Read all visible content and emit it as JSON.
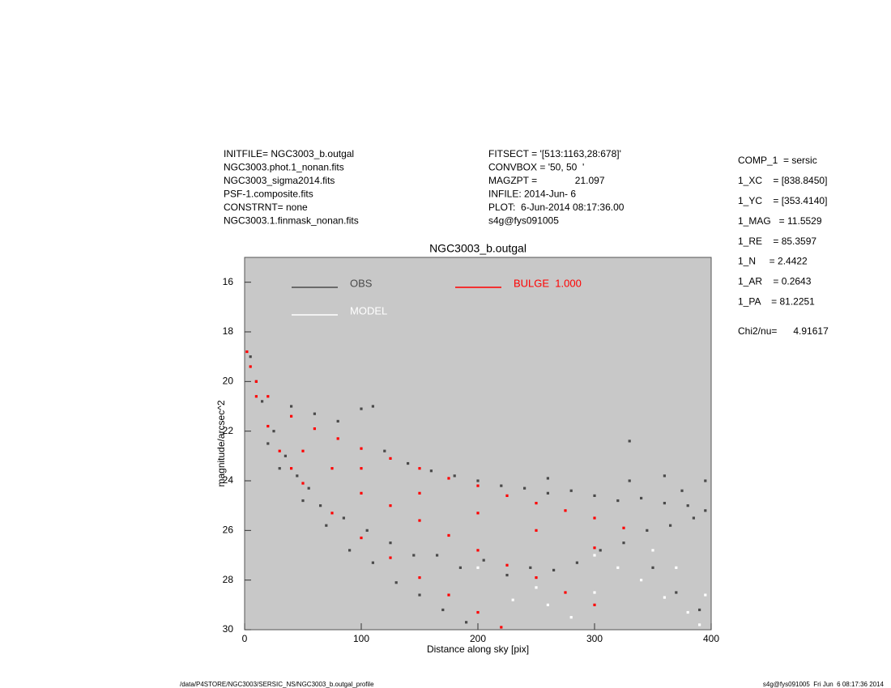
{
  "header": {
    "left": [
      "INITFILE= NGC3003_b.outgal",
      "NGC3003.phot.1_nonan.fits",
      "NGC3003_sigma2014.fits",
      "PSF-1.composite.fits",
      "CONSTRNT= none",
      "NGC3003.1.finmask_nonan.fits"
    ],
    "middle": [
      "FITSECT = '[513:1163,28:678]'",
      "CONVBOX = '50, 50  '",
      "MAGZPT =              21.097",
      "INFILE: 2014-Jun- 6",
      "PLOT:  6-Jun-2014 08:17:36.00",
      "s4g@fys091005"
    ],
    "right": [
      "COMP_1  = sersic",
      "1_XC    = [838.8450]",
      "1_YC    = [353.4140]",
      "1_MAG   = 11.5529",
      "1_RE    = 85.3597",
      "1_N     = 2.4422",
      "1_AR    = 0.2643",
      "1_PA    = 81.2251",
      "Chi2/nu=      4.91617"
    ]
  },
  "footer": {
    "left": "/data/P4STORE/NGC3003/SERSIC_NS/NGC3003_b.outgal_profile",
    "right": "s4g@fys091005  Fri Jun  6 08:17:36 2014"
  },
  "chart_data": {
    "type": "scatter",
    "title": "NGC3003_b.outgal",
    "x_label": "Distance along sky [pix]",
    "y_label": "magnitude/arcsec^2",
    "xlim": [
      0,
      400
    ],
    "ylim": [
      30,
      15
    ],
    "xticks": [
      0,
      100,
      200,
      300,
      400
    ],
    "yticks": [
      16,
      18,
      20,
      22,
      24,
      26,
      28,
      30
    ],
    "background": "#c8c8c8",
    "series": [
      {
        "name": "OBS",
        "color": "#4a4a4a",
        "x": [
          40,
          60,
          80,
          100,
          120,
          140,
          160,
          180,
          200,
          220,
          240,
          260,
          280,
          300,
          320,
          340,
          360,
          380,
          20,
          30,
          50,
          70,
          90,
          110,
          130,
          150,
          170,
          190,
          5,
          10,
          15,
          25,
          35,
          45,
          55,
          65,
          85,
          105,
          125,
          145,
          165,
          185,
          205,
          225,
          245,
          265,
          285,
          305,
          325,
          345,
          365,
          385,
          395,
          350,
          370,
          390,
          330,
          360,
          375,
          395,
          330,
          110,
          260
        ],
        "values": [
          21.0,
          21.3,
          21.6,
          21.1,
          22.8,
          23.3,
          23.6,
          23.8,
          24.0,
          24.2,
          24.3,
          24.5,
          24.4,
          24.6,
          24.8,
          24.7,
          24.9,
          25.0,
          22.5,
          23.5,
          24.8,
          25.8,
          26.8,
          27.3,
          28.1,
          28.6,
          29.2,
          29.7,
          19.0,
          20.0,
          20.8,
          22.0,
          23.0,
          23.8,
          24.3,
          25.0,
          25.5,
          26.0,
          26.5,
          27.0,
          27.0,
          27.5,
          27.2,
          27.8,
          27.5,
          27.6,
          27.3,
          26.8,
          26.5,
          26.0,
          25.8,
          25.5,
          25.2,
          27.5,
          28.5,
          29.2,
          24.0,
          23.8,
          24.4,
          24.0,
          22.4,
          21.0,
          23.9
        ]
      },
      {
        "name": "BULGE  1.000",
        "color": "#ff0000",
        "x": [
          2,
          5,
          10,
          20,
          40,
          60,
          80,
          100,
          125,
          150,
          175,
          200,
          225,
          250,
          275,
          300,
          325,
          10,
          20,
          30,
          40,
          50,
          75,
          100,
          125,
          150,
          175,
          200,
          220,
          50,
          75,
          100,
          125,
          150,
          175,
          200,
          225,
          250,
          275,
          300,
          100,
          150,
          200,
          250,
          300
        ],
        "values": [
          18.8,
          19.4,
          20.0,
          20.6,
          21.4,
          21.9,
          22.3,
          22.7,
          23.1,
          23.5,
          23.9,
          24.2,
          24.6,
          24.9,
          25.2,
          25.5,
          25.9,
          20.6,
          21.8,
          22.8,
          23.5,
          24.1,
          25.3,
          26.3,
          27.1,
          27.9,
          28.6,
          29.3,
          29.9,
          22.8,
          23.5,
          24.5,
          25.0,
          25.6,
          26.2,
          26.8,
          27.4,
          27.9,
          28.5,
          29.0,
          23.5,
          24.5,
          25.3,
          26.0,
          26.7
        ]
      },
      {
        "name": "MODEL",
        "color": "#ffffff",
        "x": [
          200,
          250,
          300,
          320,
          340,
          360,
          380,
          390,
          300,
          350,
          260,
          280,
          230,
          370,
          395
        ],
        "values": [
          27.5,
          28.3,
          28.5,
          27.5,
          28.0,
          28.7,
          29.3,
          29.8,
          27.0,
          26.8,
          29.0,
          29.5,
          28.8,
          27.5,
          28.6
        ]
      }
    ]
  }
}
